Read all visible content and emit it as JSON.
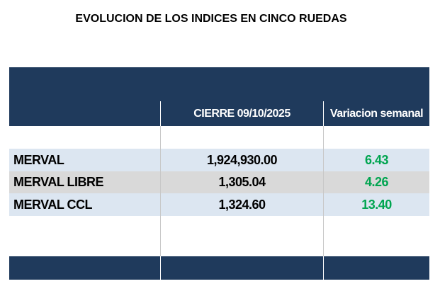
{
  "header": {
    "title": "EVOLUCION DE LOS INDICES EN CINCO RUEDAS"
  },
  "table": {
    "columns": [
      "CIERRE 09/10/2025",
      "Variacion semanal"
    ],
    "rows": [
      [
        "MERVAL",
        "1,924,930.00",
        "6.43"
      ],
      [
        "MERVAL LIBRE",
        "1,305.04",
        "4.26"
      ],
      [
        "MERVAL CCL",
        "1,324.60",
        "13.40"
      ]
    ]
  }
}
